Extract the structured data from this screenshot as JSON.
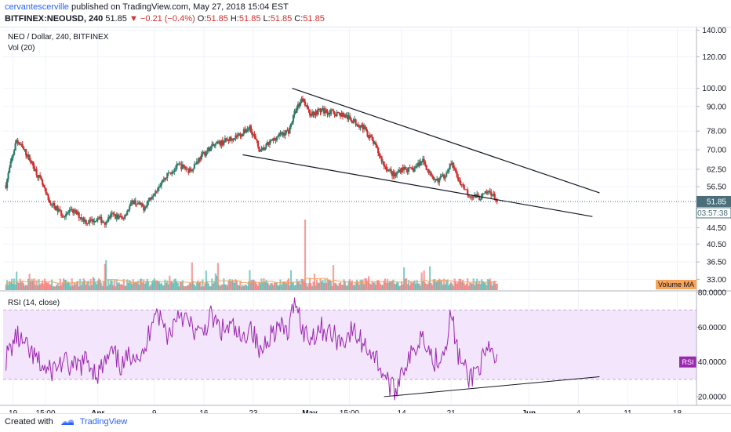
{
  "header": {
    "author": "cervantescerville",
    "published": "published on TradingView.com, May 27, 2018 15:04 EST",
    "symbol": "BITFINEX:NEOUSD, 240",
    "last": "51.85",
    "arrow": "▼",
    "change": "−0.21 (−0.4%)",
    "o_label": "O:",
    "o_value": "51.85",
    "h_label": "H:",
    "h_value": "51.85",
    "l_label": "L:",
    "l_value": "51.85",
    "c_label": "C:",
    "c_value": "51.85"
  },
  "footer": {
    "created_with": "Created with",
    "brand": "TradingView"
  },
  "colors": {
    "up": "#26a69a",
    "down": "#ef5350",
    "candle_up": "#2e7d6b",
    "candle_down": "#d32f2f",
    "rsi": "#9c27b0",
    "rsi_band": "#f3e5fb",
    "vol_ma": "#f6a55a",
    "price_tag": "#4a6f7a"
  },
  "chart_data": [
    {
      "type": "candlestick",
      "legend_title": "NEO / Dollar, 240, BITFINEX",
      "volume_label": "Vol (20)",
      "y_scale": "log",
      "yticks": [
        140.0,
        120.0,
        100.0,
        90.0,
        78.0,
        70.0,
        62.5,
        56.5,
        51.85,
        44.5,
        40.5,
        36.5,
        33.0
      ],
      "ylim": [
        31,
        143
      ],
      "last_price": 51.85,
      "countdown": "03:57:38",
      "volume_ma_label": "Volume MA",
      "x_ticks": [
        "19",
        "15:00",
        "Apr",
        "9",
        "16",
        "23",
        "May",
        "15:00",
        "14",
        "21",
        "Jun",
        "4",
        "11",
        "18"
      ],
      "x_tick_days": [
        -12,
        -7.4,
        0,
        8,
        15,
        22,
        30,
        35.6,
        43,
        50,
        61,
        68,
        75,
        82
      ],
      "x_units": "days since Apr 1, 2018",
      "price_path": {
        "days": [
          -13,
          -11.5,
          -10,
          -8,
          -7,
          -5,
          -3.5,
          -1.5,
          0,
          1,
          2,
          3.5,
          5,
          6.5,
          8,
          10,
          11.5,
          13,
          14.5,
          16,
          17.5,
          19,
          20.5,
          21.5,
          23,
          24,
          25.5,
          27,
          28,
          29,
          30,
          31.5,
          33,
          34.5,
          36,
          37.5,
          39,
          40.5,
          42,
          43,
          44.5,
          46,
          47.5,
          49,
          50,
          51,
          52.5,
          54,
          55.5,
          56.5
        ],
        "close": [
          57,
          74,
          68,
          58,
          52,
          48,
          49,
          46,
          47,
          46,
          48,
          47,
          52,
          50,
          55,
          61,
          64,
          62,
          67,
          71,
          73,
          75,
          77,
          80,
          69,
          72,
          76,
          78,
          88,
          95,
          86,
          88,
          87,
          86,
          83,
          80,
          73,
          64,
          60,
          63,
          62,
          66,
          58,
          60,
          65,
          59,
          54,
          53,
          55,
          52
        ]
      },
      "trendlines": [
        {
          "name": "upper",
          "from": [
            27.5,
            100
          ],
          "to": [
            71,
            54.5
          ]
        },
        {
          "name": "lower",
          "from": [
            20.5,
            68
          ],
          "to": [
            70,
            47.5
          ]
        }
      ]
    },
    {
      "type": "line",
      "legend_title": "RSI (14, close)",
      "y_ticks": [
        "80.0000",
        "60.0000",
        "40.0000",
        "20.0000"
      ],
      "y_tick_values": [
        80,
        60,
        40,
        20
      ],
      "ylim": [
        15,
        81
      ],
      "band": [
        30,
        70
      ],
      "last_label": "RSI",
      "last_value": 40,
      "x": [
        -13,
        -11.5,
        -10,
        -8,
        -7,
        -5,
        -3.5,
        -1.5,
        0,
        1,
        2,
        3.5,
        5,
        6.5,
        8,
        10,
        11.5,
        13,
        14.5,
        16,
        17.5,
        19,
        20.5,
        21.5,
        23,
        24,
        25.5,
        27,
        28,
        29,
        30,
        31.5,
        33,
        34.5,
        36,
        37.5,
        39,
        40.5,
        42,
        43,
        44.5,
        46,
        47.5,
        49,
        50,
        51,
        52.5,
        54,
        55.5,
        56.5
      ],
      "values": [
        42,
        55,
        47,
        38,
        34,
        40,
        36,
        41,
        33,
        39,
        45,
        37,
        47,
        42,
        72,
        55,
        70,
        61,
        55,
        66,
        58,
        60,
        51,
        63,
        44,
        55,
        60,
        57,
        78,
        58,
        54,
        60,
        56,
        52,
        58,
        51,
        45,
        33,
        22,
        36,
        44,
        58,
        40,
        47,
        68,
        44,
        30,
        38,
        46,
        40
      ],
      "trendline": {
        "from": [
          40.5,
          20
        ],
        "to": [
          71,
          31.5
        ]
      }
    }
  ]
}
